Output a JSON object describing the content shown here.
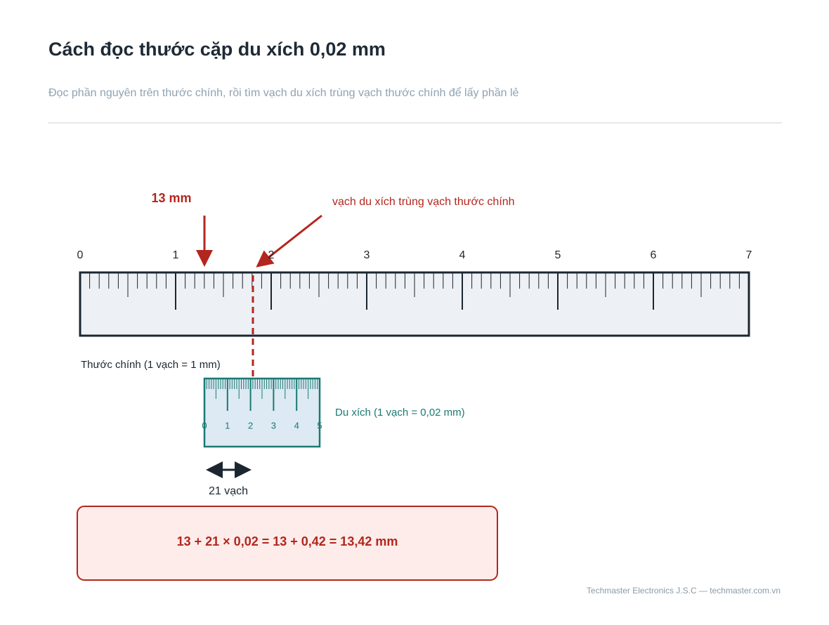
{
  "header": {
    "title": "Cách đọc thước cặp du xích 0,02 mm",
    "subtitle": "Đọc phần nguyên trên thước chính, rồi tìm vạch du xích trùng vạch thước chính để lấy phần lẻ"
  },
  "main_scale": {
    "labels": [
      "0",
      "1",
      "2",
      "3",
      "4",
      "5",
      "6",
      "7"
    ],
    "caption": "Thước chính  (1 vạch = 1 mm)"
  },
  "vernier": {
    "labels": [
      "0",
      "1",
      "2",
      "3",
      "4",
      "5"
    ],
    "caption": "Du xích  (1 vạch = 0,02 mm)"
  },
  "annotations": {
    "integer_reading": "13 mm",
    "coincidence": "vạch du xích trùng vạch thước chính",
    "count": "21 vạch"
  },
  "formula": "13 + 21 × 0,02  =  13 + 0,42  =  13,42 mm",
  "footer": "Techmaster Electronics J.S.C — techmaster.com.vn"
}
